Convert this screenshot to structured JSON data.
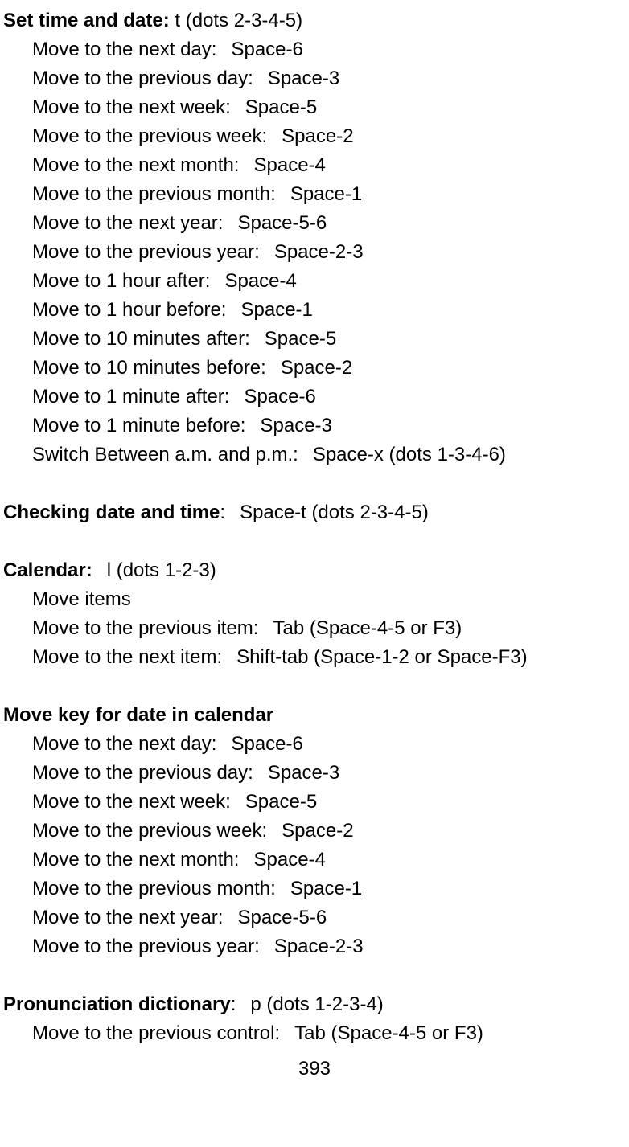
{
  "page_number": "393",
  "background_color": "#ffffff",
  "text_color": "#000000",
  "font_size": 24,
  "sections": {
    "set_time_date": {
      "heading": "Set time and date:",
      "heading_suffix": " t (dots 2-3-4-5)",
      "items": [
        {
          "label": "Move to the next day:",
          "value": "Space-6"
        },
        {
          "label": "Move to the previous day:",
          "value": "Space-3"
        },
        {
          "label": "Move to the next week:",
          "value": "Space-5"
        },
        {
          "label": "Move to the previous week:",
          "value": "Space-2"
        },
        {
          "label": "Move to the next month:",
          "value": "Space-4"
        },
        {
          "label": "Move to the previous month:",
          "value": "Space-1"
        },
        {
          "label": "Move to the next year:",
          "value": "Space-5-6"
        },
        {
          "label": "Move to the previous year:",
          "value": "Space-2-3"
        },
        {
          "label": "Move to 1 hour after:",
          "value": "Space-4"
        },
        {
          "label": "Move to 1 hour before:",
          "value": "Space-1"
        },
        {
          "label": "Move to 10 minutes after:",
          "value": "Space-5"
        },
        {
          "label": "Move to 10 minutes before:",
          "value": "Space-2"
        },
        {
          "label": "Move to 1 minute after:",
          "value": "Space-6"
        },
        {
          "label": "Move to 1 minute before:",
          "value": "Space-3"
        },
        {
          "label": "Switch Between a.m. and p.m.:",
          "value": "Space-x (dots 1-3-4-6)"
        }
      ]
    },
    "checking_date_time": {
      "heading": "Checking date and time",
      "heading_suffix": ":",
      "heading_value": "Space-t (dots 2-3-4-5)"
    },
    "calendar": {
      "heading": "Calendar:",
      "heading_value": "l (dots 1-2-3)",
      "items": [
        {
          "label": "Move items",
          "value": ""
        },
        {
          "label": "Move to the previous item:",
          "value": "Tab (Space-4-5 or F3)"
        },
        {
          "label": "Move to the next item:",
          "value": "Shift-tab (Space-1-2 or Space-F3)"
        }
      ]
    },
    "move_key_calendar": {
      "heading": "Move key for date in calendar",
      "items": [
        {
          "label": "Move to the next day:",
          "value": "Space-6"
        },
        {
          "label": "Move to the previous day:",
          "value": "Space-3"
        },
        {
          "label": "Move to the next week:",
          "value": "Space-5"
        },
        {
          "label": "Move to the previous week:",
          "value": "Space-2"
        },
        {
          "label": "Move to the next month:",
          "value": "Space-4"
        },
        {
          "label": "Move to the previous month:",
          "value": "Space-1"
        },
        {
          "label": "Move to the next year:",
          "value": "Space-5-6"
        },
        {
          "label": "Move to the previous year:",
          "value": "Space-2-3"
        }
      ]
    },
    "pronunciation_dictionary": {
      "heading": "Pronunciation dictionary",
      "heading_suffix": ":",
      "heading_value": "p (dots 1-2-3-4)",
      "items": [
        {
          "label": "Move to the previous control:",
          "value": "Tab (Space-4-5 or F3)"
        }
      ]
    }
  }
}
